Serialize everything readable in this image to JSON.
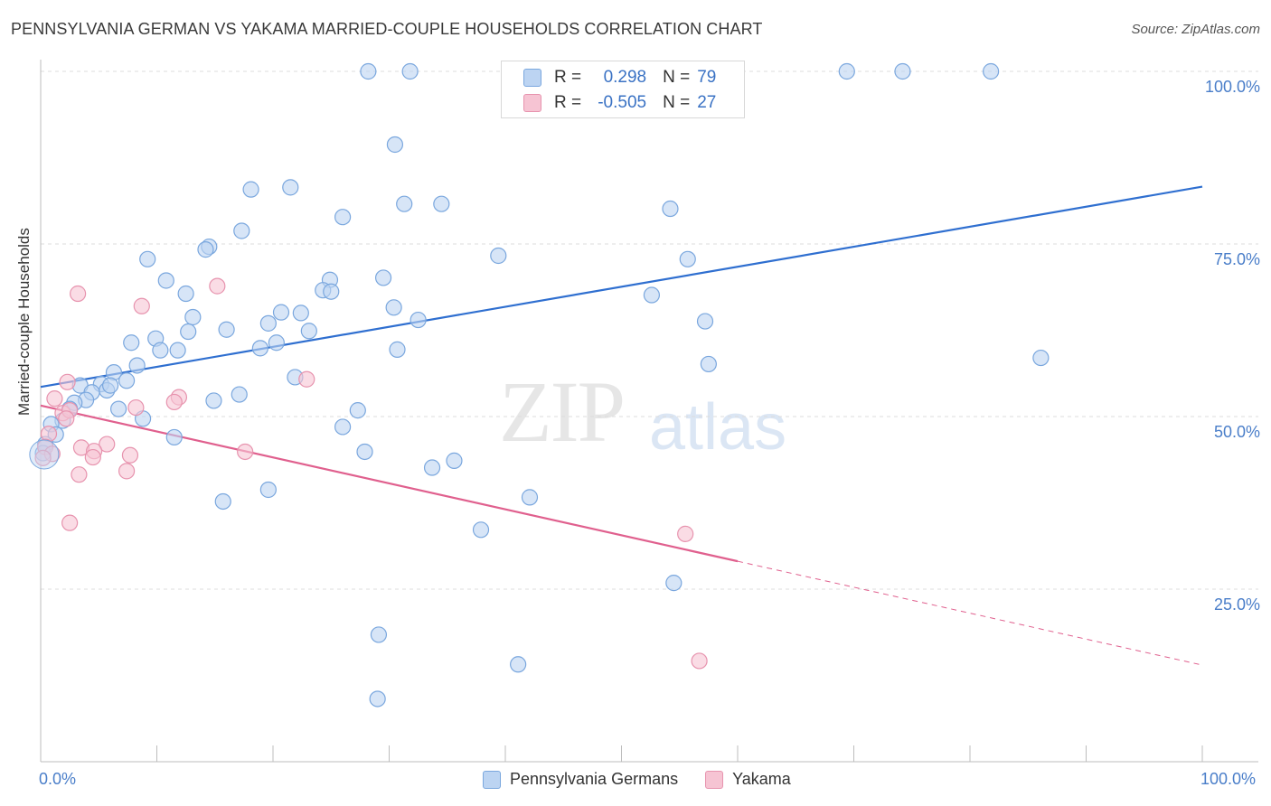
{
  "header": {
    "title": "PENNSYLVANIA GERMAN VS YAKAMA MARRIED-COUPLE HOUSEHOLDS CORRELATION CHART",
    "source": "Source: ZipAtlas.com"
  },
  "watermark": {
    "zip": "ZIP",
    "atlas": "atlas"
  },
  "legend": {
    "rows": [
      {
        "r_label": "R =",
        "r_value": "0.298",
        "n_label": "N =",
        "n_value": "79"
      },
      {
        "r_label": "R =",
        "r_value": "-0.505",
        "n_label": "N =",
        "n_value": "27"
      }
    ]
  },
  "colors": {
    "blue_fill": "#bcd4f2",
    "blue_stroke": "#7aa7de",
    "blue_line": "#2f6fd0",
    "pink_fill": "#f6c4d3",
    "pink_stroke": "#e793ae",
    "pink_line": "#e0608e"
  },
  "chart_data": {
    "type": "scatter",
    "title": "PENNSYLVANIA GERMAN VS YAKAMA MARRIED-COUPLE HOUSEHOLDS CORRELATION CHART",
    "xlabel": "",
    "ylabel": "Married-couple Households",
    "xlim": [
      0,
      100
    ],
    "ylim": [
      0,
      100
    ],
    "x_tick_labels": [
      "0.0%",
      "100.0%"
    ],
    "y_tick_labels": [
      "25.0%",
      "50.0%",
      "75.0%",
      "100.0%"
    ],
    "y_tick_values": [
      25,
      50,
      75,
      100
    ],
    "grid": true,
    "series": [
      {
        "name": "Pennsylvania Germans",
        "r": 0.298,
        "n": 79,
        "trend": {
          "x0": 0,
          "y0": 54.3,
          "x1": 100,
          "y1": 83.3,
          "dash_from": null
        },
        "points": [
          [
            28.2,
            100
          ],
          [
            31.8,
            100
          ],
          [
            69.4,
            100
          ],
          [
            74.2,
            100
          ],
          [
            81.8,
            100
          ],
          [
            30.5,
            89.4
          ],
          [
            18.1,
            82.9
          ],
          [
            21.5,
            83.2
          ],
          [
            31.3,
            80.8
          ],
          [
            34.5,
            80.8
          ],
          [
            26.0,
            78.9
          ],
          [
            54.2,
            80.1
          ],
          [
            17.3,
            76.9
          ],
          [
            14.5,
            74.6
          ],
          [
            14.2,
            74.2
          ],
          [
            9.2,
            72.8
          ],
          [
            39.4,
            73.3
          ],
          [
            55.7,
            72.8
          ],
          [
            10.8,
            69.7
          ],
          [
            24.9,
            69.8
          ],
          [
            29.5,
            70.1
          ],
          [
            12.5,
            67.8
          ],
          [
            24.3,
            68.3
          ],
          [
            25.0,
            68.1
          ],
          [
            30.4,
            65.8
          ],
          [
            52.6,
            67.6
          ],
          [
            20.7,
            65.1
          ],
          [
            22.4,
            65.0
          ],
          [
            13.1,
            64.4
          ],
          [
            19.6,
            63.5
          ],
          [
            32.5,
            64.0
          ],
          [
            57.2,
            63.8
          ],
          [
            12.7,
            62.3
          ],
          [
            16.0,
            62.6
          ],
          [
            23.1,
            62.4
          ],
          [
            7.8,
            60.7
          ],
          [
            9.9,
            61.3
          ],
          [
            10.3,
            59.6
          ],
          [
            11.8,
            59.6
          ],
          [
            18.9,
            59.9
          ],
          [
            20.3,
            60.7
          ],
          [
            30.7,
            59.7
          ],
          [
            8.3,
            57.4
          ],
          [
            6.3,
            56.4
          ],
          [
            21.9,
            55.7
          ],
          [
            57.5,
            57.6
          ],
          [
            86.1,
            58.5
          ],
          [
            7.4,
            55.2
          ],
          [
            3.4,
            54.5
          ],
          [
            5.2,
            54.7
          ],
          [
            5.7,
            53.8
          ],
          [
            6.0,
            54.5
          ],
          [
            4.4,
            53.5
          ],
          [
            17.1,
            53.2
          ],
          [
            3.9,
            52.4
          ],
          [
            14.9,
            52.3
          ],
          [
            2.9,
            52.0
          ],
          [
            2.5,
            51.1
          ],
          [
            6.7,
            51.1
          ],
          [
            27.3,
            50.9
          ],
          [
            8.8,
            49.7
          ],
          [
            1.9,
            49.4
          ],
          [
            0.9,
            48.9
          ],
          [
            26.0,
            48.5
          ],
          [
            1.3,
            47.4
          ],
          [
            11.5,
            47.0
          ],
          [
            0.4,
            46.0
          ],
          [
            0.2,
            44.7
          ],
          [
            35.6,
            43.6
          ],
          [
            33.7,
            42.6
          ],
          [
            15.7,
            37.7
          ],
          [
            19.6,
            39.4
          ],
          [
            42.1,
            38.3
          ],
          [
            37.9,
            33.6
          ],
          [
            54.5,
            25.9
          ],
          [
            29.1,
            18.4
          ],
          [
            41.1,
            14.1
          ],
          [
            29.0,
            9.1
          ],
          [
            27.9,
            44.9
          ]
        ]
      },
      {
        "name": "Yakama",
        "r": -0.505,
        "n": 27,
        "trend": {
          "x0": 0,
          "y0": 51.6,
          "x1": 100,
          "y1": 14.0,
          "dash_from": 60
        },
        "points": [
          [
            3.2,
            67.8
          ],
          [
            8.7,
            66.0
          ],
          [
            15.2,
            68.9
          ],
          [
            2.3,
            55.0
          ],
          [
            22.9,
            55.4
          ],
          [
            1.2,
            52.6
          ],
          [
            11.9,
            52.8
          ],
          [
            11.5,
            52.1
          ],
          [
            8.2,
            51.3
          ],
          [
            1.9,
            50.5
          ],
          [
            2.5,
            50.9
          ],
          [
            2.2,
            49.7
          ],
          [
            0.7,
            47.5
          ],
          [
            0.4,
            45.6
          ],
          [
            3.5,
            45.5
          ],
          [
            5.7,
            46.0
          ],
          [
            4.6,
            45.0
          ],
          [
            17.6,
            44.9
          ],
          [
            1.0,
            44.6
          ],
          [
            7.7,
            44.4
          ],
          [
            0.2,
            44.0
          ],
          [
            4.5,
            44.1
          ],
          [
            7.4,
            42.1
          ],
          [
            3.3,
            41.6
          ],
          [
            2.5,
            34.6
          ],
          [
            55.5,
            33.0
          ],
          [
            56.7,
            14.6
          ]
        ]
      }
    ]
  },
  "bottom_legend": {
    "items": [
      {
        "label": "Pennsylvania Germans"
      },
      {
        "label": "Yakama"
      }
    ]
  }
}
